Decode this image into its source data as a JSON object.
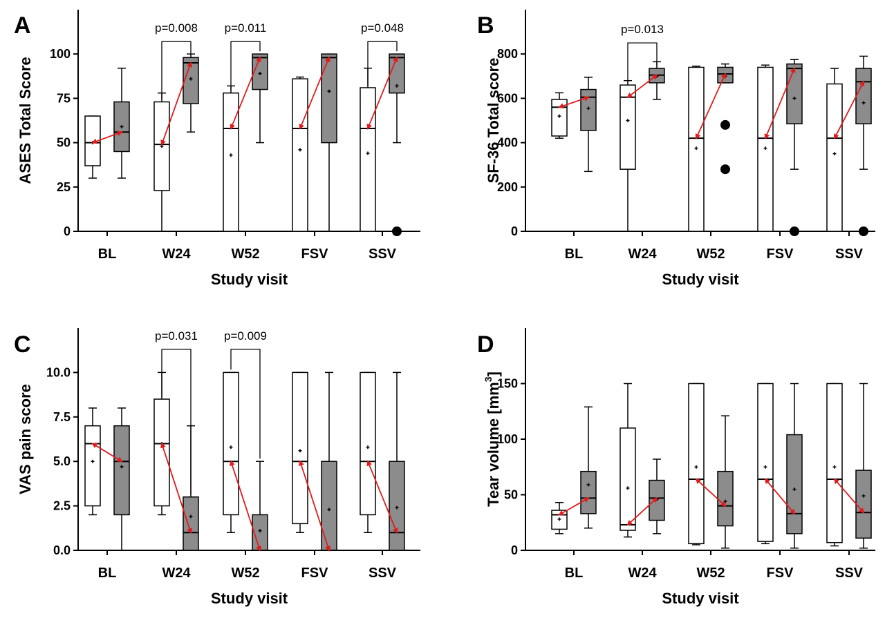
{
  "colors": {
    "arrow": "#e31a1c",
    "box_before": "#ffffff",
    "box_after": "#8c8c8c",
    "outline": "#000000"
  },
  "chart_data": [
    {
      "type": "boxplot",
      "panel": "A",
      "ylabel": "ASES Total Score",
      "xlabel": "Study visit",
      "categories": [
        "BL",
        "W24",
        "W52",
        "FSV",
        "SSV"
      ],
      "ylim": [
        0,
        125
      ],
      "yticks": [
        0,
        25,
        50,
        75,
        100
      ],
      "ytick_labels": [
        "0",
        "25",
        "50",
        "75",
        "100"
      ],
      "groups": [
        {
          "name": "",
          "color": "#ffffff",
          "boxes": [
            {
              "min": 30,
              "q1": 37,
              "median": 50,
              "q3": 65,
              "max": 65,
              "mean": 50,
              "outliers": []
            },
            {
              "min": 0,
              "q1": 23,
              "median": 49,
              "q3": 73,
              "max": 78,
              "mean": 48,
              "outliers": []
            },
            {
              "min": 0,
              "q1": 0,
              "median": 58,
              "q3": 78,
              "max": 82,
              "mean": 43,
              "outliers": []
            },
            {
              "min": 0,
              "q1": 0,
              "median": 58,
              "q3": 86,
              "max": 87,
              "mean": 46,
              "outliers": []
            },
            {
              "min": 0,
              "q1": 0,
              "median": 58,
              "q3": 81,
              "max": 92,
              "mean": 44,
              "outliers": []
            }
          ]
        },
        {
          "name": "",
          "color": "#8c8c8c",
          "boxes": [
            {
              "min": 30,
              "q1": 45,
              "median": 56,
              "q3": 73,
              "max": 92,
              "mean": 59,
              "outliers": []
            },
            {
              "min": 56,
              "q1": 72,
              "median": 95,
              "q3": 98,
              "max": 100,
              "mean": 86,
              "outliers": []
            },
            {
              "min": 50,
              "q1": 80,
              "median": 98,
              "q3": 100,
              "max": 100,
              "mean": 89,
              "outliers": []
            },
            {
              "min": 0,
              "q1": 50,
              "median": 98,
              "q3": 100,
              "max": 100,
              "mean": 79,
              "outliers": []
            },
            {
              "min": 50,
              "q1": 78,
              "median": 98,
              "q3": 100,
              "max": 100,
              "mean": 82,
              "outliers": [
                0
              ]
            }
          ]
        }
      ],
      "arrows": [
        {
          "from": 50,
          "to": 56
        },
        {
          "from": 49,
          "to": 95
        },
        {
          "from": 58,
          "to": 98
        },
        {
          "from": 58,
          "to": 98
        },
        {
          "from": 58,
          "to": 98
        }
      ],
      "pvalues": [
        {
          "category": "W24",
          "label": "p=0.008",
          "y_left": 73,
          "y_right": 98,
          "y_top": 107
        },
        {
          "category": "W52",
          "label": "p=0.011",
          "y_left": 78,
          "y_right": 100,
          "y_top": 107
        },
        {
          "category": "SSV",
          "label": "p=0.048",
          "y_left": 81,
          "y_right": 100,
          "y_top": 107
        }
      ]
    },
    {
      "type": "boxplot",
      "panel": "B",
      "ylabel": "SF-36 Total score",
      "xlabel": "Study visit",
      "categories": [
        "BL",
        "W24",
        "W52",
        "FSV",
        "SSV"
      ],
      "ylim": [
        0,
        1000
      ],
      "yticks": [
        0,
        200,
        400,
        600,
        800
      ],
      "ytick_labels": [
        "0",
        "200",
        "400",
        "600",
        "800"
      ],
      "groups": [
        {
          "name": "",
          "color": "#ffffff",
          "boxes": [
            {
              "min": 420,
              "q1": 430,
              "median": 560,
              "q3": 595,
              "max": 625,
              "mean": 520,
              "outliers": []
            },
            {
              "min": 0,
              "q1": 280,
              "median": 605,
              "q3": 660,
              "max": 680,
              "mean": 500,
              "outliers": []
            },
            {
              "min": 0,
              "q1": 0,
              "median": 420,
              "q3": 740,
              "max": 745,
              "mean": 375,
              "outliers": []
            },
            {
              "min": 0,
              "q1": 0,
              "median": 420,
              "q3": 740,
              "max": 750,
              "mean": 375,
              "outliers": []
            },
            {
              "min": 0,
              "q1": 0,
              "median": 420,
              "q3": 665,
              "max": 735,
              "mean": 350,
              "outliers": []
            }
          ]
        },
        {
          "name": "",
          "color": "#8c8c8c",
          "boxes": [
            {
              "min": 270,
              "q1": 455,
              "median": 605,
              "q3": 640,
              "max": 695,
              "mean": 555,
              "outliers": []
            },
            {
              "min": 595,
              "q1": 670,
              "median": 705,
              "q3": 735,
              "max": 765,
              "mean": 700,
              "outliers": []
            },
            {
              "min": 670,
              "q1": 670,
              "median": 710,
              "q3": 740,
              "max": 755,
              "mean": 700,
              "outliers": [
                480,
                280
              ]
            },
            {
              "min": 280,
              "q1": 485,
              "median": 735,
              "q3": 755,
              "max": 775,
              "mean": 600,
              "outliers": [
                0
              ]
            },
            {
              "min": 280,
              "q1": 485,
              "median": 675,
              "q3": 735,
              "max": 790,
              "mean": 580,
              "outliers": [
                0
              ]
            }
          ]
        }
      ],
      "arrows": [
        {
          "from": 560,
          "to": 605
        },
        {
          "from": 605,
          "to": 705
        },
        {
          "from": 420,
          "to": 710
        },
        {
          "from": 420,
          "to": 735
        },
        {
          "from": 420,
          "to": 675
        }
      ],
      "pvalues": [
        {
          "category": "W24",
          "label": "p=0.013",
          "y_left": 660,
          "y_right": 735,
          "y_top": 850
        }
      ]
    },
    {
      "type": "boxplot",
      "panel": "C",
      "ylabel": "VAS pain score",
      "xlabel": "Study visit",
      "categories": [
        "BL",
        "W24",
        "W52",
        "FSV",
        "SSV"
      ],
      "ylim": [
        0,
        12.5
      ],
      "yticks": [
        0,
        2.5,
        5,
        7.5,
        10
      ],
      "ytick_labels": [
        "0.0",
        "2.5",
        "5.0",
        "7.5",
        "10.0"
      ],
      "groups": [
        {
          "name": "",
          "color": "#ffffff",
          "boxes": [
            {
              "min": 2,
              "q1": 2.5,
              "median": 6,
              "q3": 7,
              "max": 8,
              "mean": 5,
              "outliers": []
            },
            {
              "min": 2,
              "q1": 2.5,
              "median": 6,
              "q3": 8.5,
              "max": 10,
              "mean": 6,
              "outliers": []
            },
            {
              "min": 1,
              "q1": 2,
              "median": 5,
              "q3": 10,
              "max": 10,
              "mean": 5.8,
              "outliers": []
            },
            {
              "min": 1,
              "q1": 1.5,
              "median": 5,
              "q3": 10,
              "max": 10,
              "mean": 5.6,
              "outliers": []
            },
            {
              "min": 1,
              "q1": 2,
              "median": 5,
              "q3": 10,
              "max": 10,
              "mean": 5.8,
              "outliers": []
            }
          ]
        },
        {
          "name": "",
          "color": "#8c8c8c",
          "boxes": [
            {
              "min": 0,
              "q1": 2,
              "median": 5,
              "q3": 7,
              "max": 8,
              "mean": 4.7,
              "outliers": []
            },
            {
              "min": 0,
              "q1": 0,
              "median": 1,
              "q3": 3,
              "max": 7,
              "mean": 1.9,
              "outliers": []
            },
            {
              "min": 0,
              "q1": 0,
              "median": 0,
              "q3": 2,
              "max": 5,
              "mean": 1.1,
              "outliers": []
            },
            {
              "min": 0,
              "q1": 0,
              "median": 0,
              "q3": 5,
              "max": 10,
              "mean": 2.3,
              "outliers": []
            },
            {
              "min": 0,
              "q1": 0,
              "median": 1,
              "q3": 5,
              "max": 10,
              "mean": 2.4,
              "outliers": []
            }
          ]
        }
      ],
      "arrows": [
        {
          "from": 6,
          "to": 5
        },
        {
          "from": 6,
          "to": 1
        },
        {
          "from": 5,
          "to": 0
        },
        {
          "from": 5,
          "to": 0
        },
        {
          "from": 5,
          "to": 1
        }
      ],
      "pvalues": [
        {
          "category": "W24",
          "label": "p=0.031",
          "y_left": 8.5,
          "y_right": 3,
          "y_top": 11.3
        },
        {
          "category": "W52",
          "label": "p=0.009",
          "y_left": 10,
          "y_right": 5,
          "y_top": 11.3
        }
      ]
    },
    {
      "type": "boxplot",
      "panel": "D",
      "ylabel": "Tear volume [mm",
      "ylabel_sup": "3",
      "ylabel_tail": "]",
      "xlabel": "Study visit",
      "categories": [
        "BL",
        "W24",
        "W52",
        "FSV",
        "SSV"
      ],
      "ylim": [
        0,
        200
      ],
      "yticks": [
        0,
        50,
        100,
        150
      ],
      "ytick_labels": [
        "0",
        "50",
        "100",
        "150"
      ],
      "groups": [
        {
          "name": "",
          "color": "#ffffff",
          "boxes": [
            {
              "min": 15,
              "q1": 19,
              "median": 32,
              "q3": 36,
              "max": 43,
              "mean": 28,
              "outliers": []
            },
            {
              "min": 12,
              "q1": 18,
              "median": 23,
              "q3": 110,
              "max": 150,
              "mean": 56,
              "outliers": []
            },
            {
              "min": 5,
              "q1": 6,
              "median": 64,
              "q3": 150,
              "max": 150,
              "mean": 75,
              "outliers": []
            },
            {
              "min": 6,
              "q1": 8,
              "median": 64,
              "q3": 150,
              "max": 150,
              "mean": 75,
              "outliers": []
            },
            {
              "min": 4,
              "q1": 7,
              "median": 64,
              "q3": 150,
              "max": 150,
              "mean": 75,
              "outliers": []
            }
          ]
        },
        {
          "name": "",
          "color": "#8c8c8c",
          "boxes": [
            {
              "min": 20,
              "q1": 33,
              "median": 47,
              "q3": 71,
              "max": 129,
              "mean": 59,
              "outliers": []
            },
            {
              "min": 15,
              "q1": 27,
              "median": 47,
              "q3": 63,
              "max": 82,
              "mean": 46,
              "outliers": []
            },
            {
              "min": 2,
              "q1": 22,
              "median": 40,
              "q3": 71,
              "max": 121,
              "mean": 44,
              "outliers": []
            },
            {
              "min": 2,
              "q1": 15,
              "median": 33,
              "q3": 104,
              "max": 150,
              "mean": 55,
              "outliers": []
            },
            {
              "min": 2,
              "q1": 11,
              "median": 34,
              "q3": 72,
              "max": 150,
              "mean": 49,
              "outliers": []
            }
          ]
        }
      ],
      "arrows": [
        {
          "from": 32,
          "to": 47
        },
        {
          "from": 23,
          "to": 47
        },
        {
          "from": 64,
          "to": 40
        },
        {
          "from": 64,
          "to": 33
        },
        {
          "from": 64,
          "to": 34
        }
      ],
      "pvalues": []
    }
  ]
}
